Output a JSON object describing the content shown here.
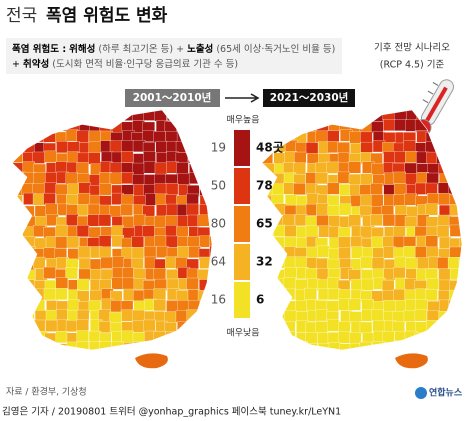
{
  "title": {
    "prefix": "전국",
    "main": "폭염 위험도 변화"
  },
  "definition": {
    "term": "폭염 위험도 :",
    "hazard": "위해성",
    "hazard_note": "(하루 최고기온 등) +",
    "exposure": "노출성",
    "exposure_note": "(65세 이상·독거노인 비율 등)",
    "plus": "+",
    "vulnerability": "취약성",
    "vulnerability_note": "(도시화 면적 비율·인구당 응급의료 기관 수 등)"
  },
  "scenario": {
    "line1": "기후 전망 시나리오",
    "line2": "(RCP 4.5) 기준"
  },
  "periods": {
    "before": "2001～2010년",
    "after": "2021～2030년"
  },
  "legend": {
    "top": "매우높음",
    "bottom": "매우낮음",
    "levels": [
      {
        "before": "19",
        "after": "48곳"
      },
      {
        "before": "50",
        "after": "78"
      },
      {
        "before": "80",
        "after": "65"
      },
      {
        "before": "64",
        "after": "32"
      },
      {
        "before": "16",
        "after": "6"
      }
    ]
  },
  "source": "자료 / 환경부, 기상청",
  "credit": "김영은 기자 / 20190801  트위터 @yonhap_graphics  페이스북 tuney.kr/LeYN1",
  "logo": "연합뉴스"
}
